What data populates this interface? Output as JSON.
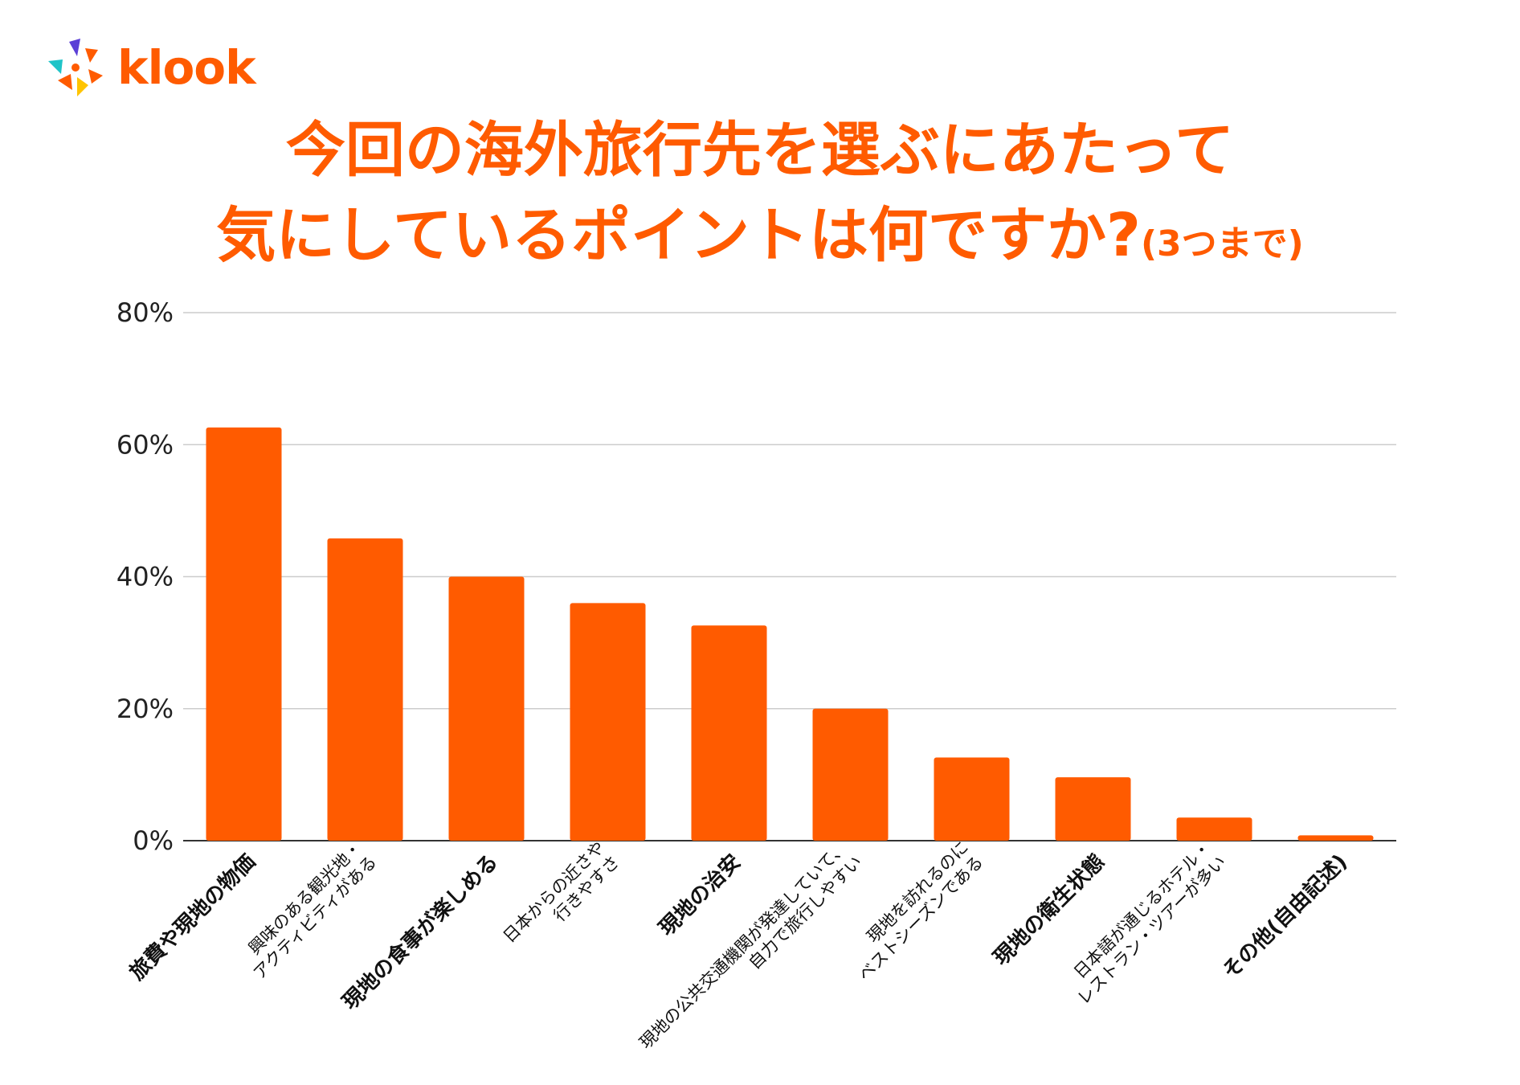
{
  "logo": {
    "text": "klook"
  },
  "title": {
    "line1": "今回の海外旅行先を選ぶにあたって",
    "line2": "気にしているポイントは何ですか?",
    "note": "(3つまで)"
  },
  "colors": {
    "brand": "#ff5b00",
    "bar": "#ff5b00",
    "grid": "#cccccc",
    "axis": "#333333"
  },
  "chart_data": {
    "type": "bar",
    "ylim": [
      0,
      80
    ],
    "yticks": [
      0,
      20,
      40,
      60,
      80
    ],
    "ytick_labels": [
      "0%",
      "20%",
      "40%",
      "60%",
      "80%"
    ],
    "grid": true,
    "categories": [
      [
        "旅費や現地の物価"
      ],
      [
        "興味のある観光地・",
        "アクティビティがある"
      ],
      [
        "現地の食事が楽しめる"
      ],
      [
        "日本からの近さや",
        "行きやすさ"
      ],
      [
        "現地の治安"
      ],
      [
        "現地の公共交通機関が発達していて、",
        "自力で旅行しやすい"
      ],
      [
        "現地を訪れるのに",
        "ベストシーズンである"
      ],
      [
        "現地の衛生状態"
      ],
      [
        "日本語が通じるホテル・",
        "レストラン・ツアーが多い"
      ],
      [
        "その他(自由記述)"
      ]
    ],
    "values": [
      62.6,
      45.8,
      40.0,
      36.0,
      32.6,
      20.0,
      12.6,
      9.6,
      3.5,
      0.8
    ]
  }
}
